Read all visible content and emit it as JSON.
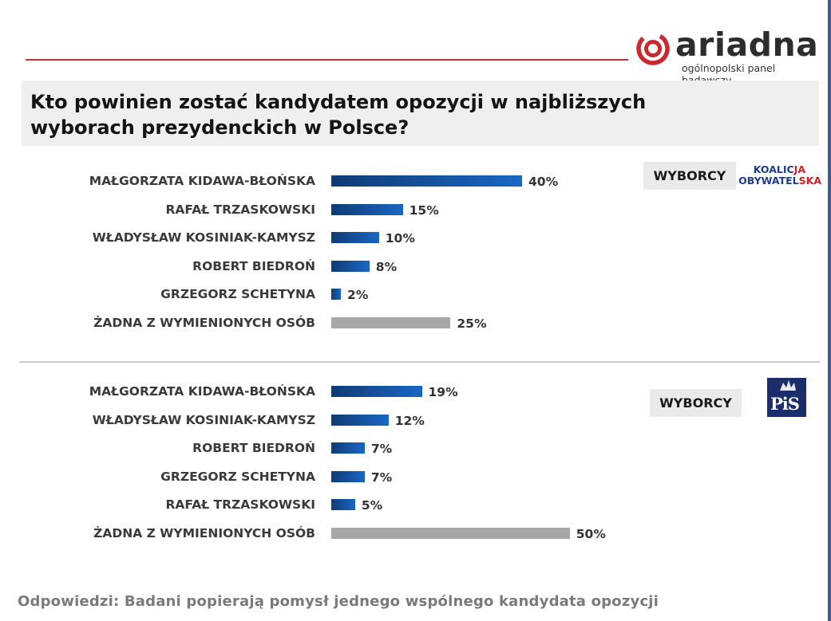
{
  "brand": {
    "name": "ariadna",
    "tagline": "ogólnopolski panel badawczy",
    "colors": {
      "logo_red": "#c9282d",
      "rule_red": "#b5353a",
      "bar_blue_dark": "#0f3b74",
      "bar_blue_light": "#1a67c4",
      "bar_gray": "#a7a7a7"
    }
  },
  "title": "Kto powinien zostać kandydatem opozycji w najbliższych wyborach prezydenckich w Polsce?",
  "chart_data": [
    {
      "type": "bar",
      "orientation": "horizontal",
      "group_label": "WYBORCY",
      "party_logo": {
        "line1": "KOALICJA",
        "line2": "OBYWATELSKA"
      },
      "categories": [
        "MAŁGORZATA KIDAWA-BŁOŃSKA",
        "RAFAŁ TRZASKOWSKI",
        "WŁADYSŁAW KOSINIAK-KAMYSZ",
        "ROBERT BIEDROŃ",
        "GRZEGORZ SCHETYNA",
        "ŻADNA Z WYMIENIONYCH OSÓB"
      ],
      "values": [
        40,
        15,
        10,
        8,
        2,
        25
      ],
      "value_labels": [
        "40%",
        "15%",
        "10%",
        "8%",
        "2%",
        "25%"
      ],
      "unit": "%"
    },
    {
      "type": "bar",
      "orientation": "horizontal",
      "group_label": "WYBORCY",
      "party_logo": {
        "text": "PiS"
      },
      "categories": [
        "MAŁGORZATA KIDAWA-BŁOŃSKA",
        "WŁADYSŁAW KOSINIAK-KAMYSZ",
        "ROBERT BIEDROŃ",
        "GRZEGORZ SCHETYNA",
        "RAFAŁ TRZASKOWSKI",
        "ŻADNA Z WYMIENIONYCH OSÓB"
      ],
      "values": [
        19,
        12,
        7,
        7,
        5,
        50
      ],
      "value_labels": [
        "19%",
        "12%",
        "7%",
        "7%",
        "5%",
        "50%"
      ],
      "unit": "%"
    }
  ],
  "footer": "Odpowiedzi: Badani popierają pomysł jednego wspólnego kandydata opozycji"
}
